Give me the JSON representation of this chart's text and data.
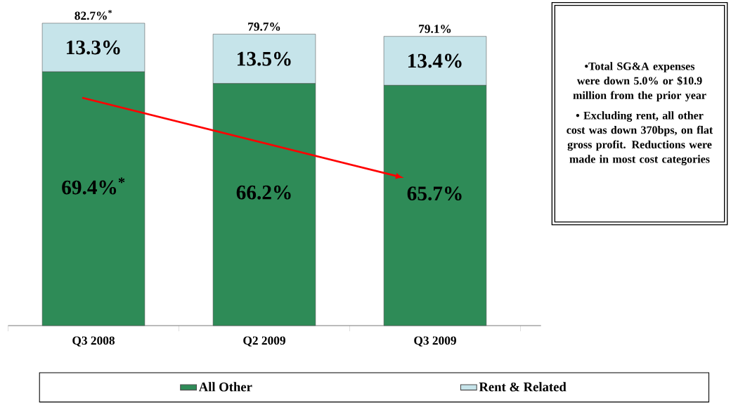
{
  "chart_data": {
    "type": "bar",
    "stacked": true,
    "categories": [
      "Q3 2008",
      "Q2 2009",
      "Q3 2009"
    ],
    "series": [
      {
        "name": "All Other",
        "color": "#2e8b57",
        "values": [
          69.4,
          66.2,
          65.7
        ],
        "value_labels": [
          "69.4%$^{*}$",
          "66.2%",
          "65.7%"
        ]
      },
      {
        "name": "Rent & Related",
        "color": "#c6e4ea",
        "values": [
          13.3,
          13.5,
          13.4
        ],
        "value_labels": [
          "13.3%",
          "13.5%",
          "13.4%"
        ]
      }
    ],
    "totals": [
      "82.7%$^{*}$",
      "79.7%",
      "79.1%"
    ],
    "legend": "bottom",
    "annotations": [
      "•Total SG&A expenses were down 5.0% or $10.9 million from the prior year",
      "• Excluding rent, all other cost was down 370bps, on flat gross profit.  Reductions were made in most cost categories"
    ]
  }
}
